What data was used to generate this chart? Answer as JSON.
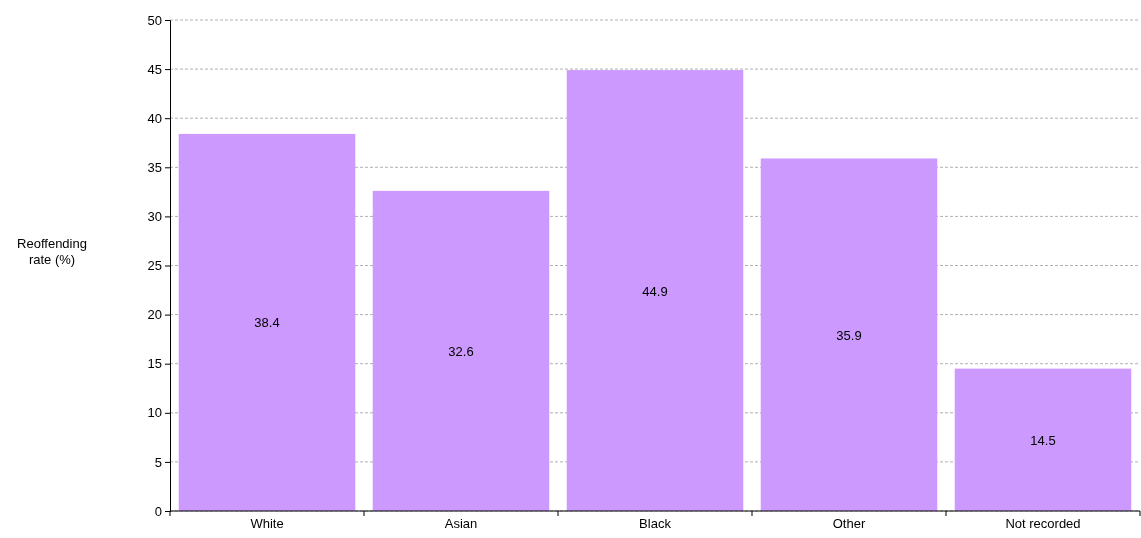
{
  "chart_data": {
    "type": "bar",
    "ylabel": "Reoffending rate (%)",
    "categories": [
      "White",
      "Asian",
      "Black",
      "Other",
      "Not recorded"
    ],
    "values": [
      38.4,
      32.6,
      44.9,
      35.9,
      14.5
    ],
    "color": "#cc99ff",
    "ylim": [
      0,
      50
    ],
    "yticks": [
      0,
      5,
      10,
      15,
      20,
      25,
      30,
      35,
      40,
      45,
      50
    ],
    "grid": "y",
    "data_labels": true
  }
}
